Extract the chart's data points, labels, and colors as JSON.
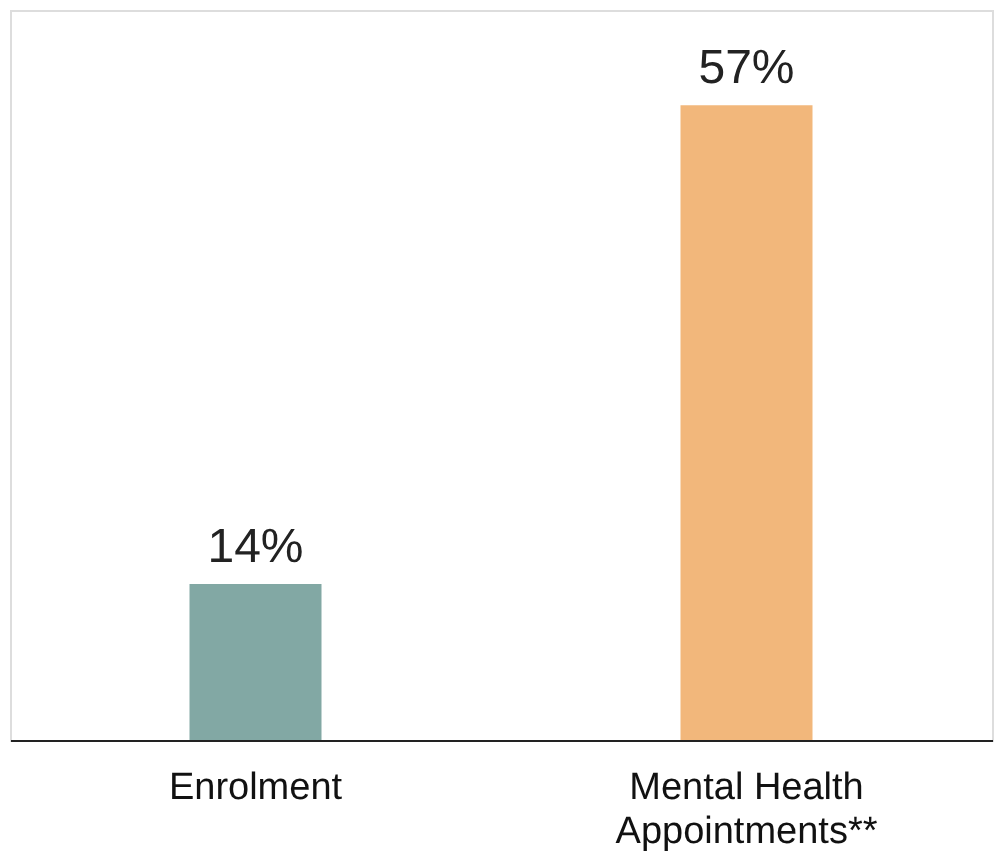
{
  "chart_data": {
    "type": "bar",
    "categories": [
      "Enrolment",
      "Mental Health\nAppointments**"
    ],
    "values": [
      14,
      57
    ],
    "colors": [
      "#82a8a4",
      "#f2b77b"
    ],
    "value_labels": [
      "14%",
      "57%"
    ]
  }
}
